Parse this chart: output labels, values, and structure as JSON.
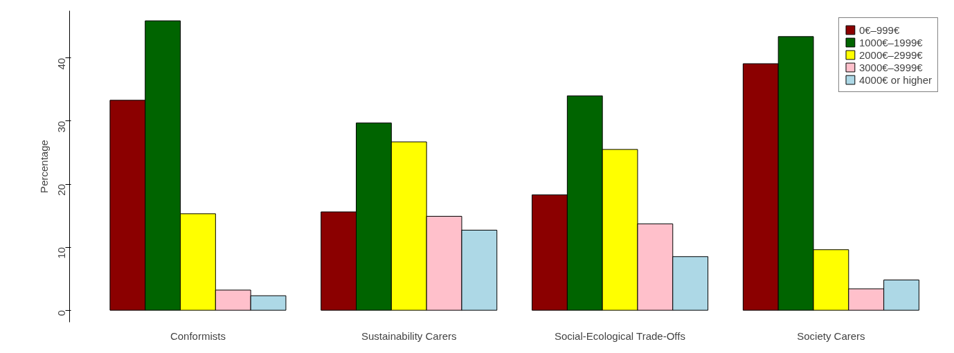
{
  "chart_data": {
    "type": "bar",
    "ylabel": "Percentage",
    "categories": [
      "Conformists",
      "Sustainability Carers",
      "Social-Ecological Trade-Offs",
      "Society Carers"
    ],
    "series": [
      {
        "name": "0€–999€",
        "color": "#8b0000",
        "values": [
          33.3,
          15.6,
          18.3,
          39.1
        ]
      },
      {
        "name": "1000€–1999€",
        "color": "#006400",
        "values": [
          45.9,
          29.7,
          34.0,
          43.4
        ]
      },
      {
        "name": "2000€–2999€",
        "color": "#ffff00",
        "values": [
          15.3,
          26.7,
          25.5,
          9.6
        ]
      },
      {
        "name": "3000€–3999€",
        "color": "#ffc0cb",
        "values": [
          3.2,
          14.9,
          13.7,
          3.4
        ]
      },
      {
        "name": "4000€ or higher",
        "color": "#add8e6",
        "values": [
          2.3,
          12.7,
          8.5,
          4.8
        ]
      }
    ],
    "ylim": [
      -1.9,
      47.5
    ],
    "yticks": [
      0,
      10,
      20,
      30,
      40
    ],
    "grid": false,
    "legend": "top right"
  }
}
